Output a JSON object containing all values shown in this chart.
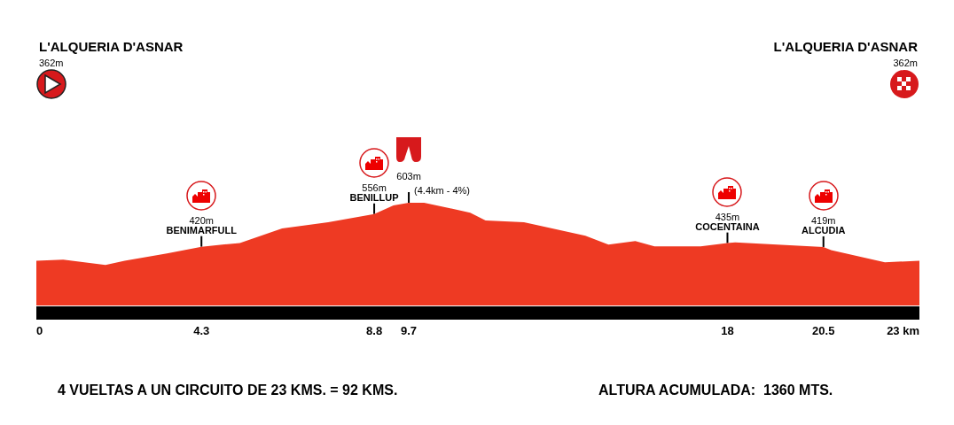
{
  "chart_data": {
    "type": "area",
    "x": [
      0,
      0.7,
      1.8,
      2.3,
      3.4,
      4.3,
      4.9,
      5.3,
      6.4,
      7.6,
      8.8,
      9.3,
      9.7,
      10.1,
      11.3,
      11.7,
      12.7,
      14.3,
      14.9,
      15.6,
      16.1,
      17.3,
      18,
      18.2,
      20.5,
      20.7,
      22.1,
      23
    ],
    "values": [
      362,
      366,
      344,
      362,
      392,
      420,
      430,
      435,
      496,
      522,
      556,
      592,
      603,
      603,
      562,
      529,
      522,
      466,
      429,
      444,
      422,
      422,
      435,
      438,
      419,
      406,
      355,
      362
    ],
    "value_labels": [
      null,
      null,
      null,
      null,
      null,
      "420m",
      null,
      null,
      null,
      null,
      "556m",
      null,
      "603m",
      null,
      null,
      null,
      null,
      null,
      null,
      null,
      null,
      null,
      "435m",
      null,
      "419m",
      null,
      null,
      null
    ],
    "color": "#ee3a23",
    "xlim": [
      0,
      23
    ],
    "xticks": [
      0,
      4.3,
      8.8,
      9.7,
      18,
      20.5,
      {
        "value": 23,
        "label": "23 km"
      }
    ],
    "tick_labels": "x",
    "grid": false,
    "annotations": [
      "L'ALQUERIA D'ASNAR",
      "362m",
      "L'ALQUERIA D'ASNAR",
      "362m",
      {
        "text": "BENIMARFULL",
        "x": 4.3,
        "y": 420
      },
      {
        "text": "BENILLUP",
        "x": 8.8,
        "y": 556
      },
      {
        "text": "(4.4km - 4%)",
        "x": 9.7,
        "y": 603
      },
      {
        "text": "COCENTAINA",
        "x": 18,
        "y": 435
      },
      {
        "text": "ALCUDIA",
        "x": 20.5,
        "y": 419
      },
      "4 VUELTAS A UN CIRCUITO DE 23 KMS. = 92 KMS.",
      "ALTURA ACUMULADA:  1360 MTS."
    ]
  }
}
